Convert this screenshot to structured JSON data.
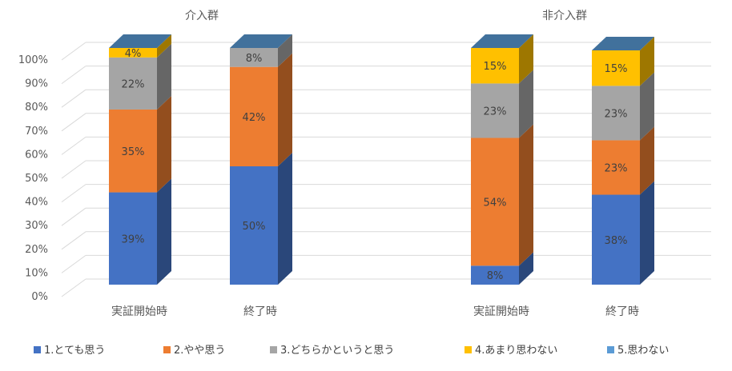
{
  "chart_data": {
    "type": "bar",
    "stacked": true,
    "three_d": true,
    "groups": [
      {
        "name": "介入群",
        "categories": [
          "実証開始時",
          "終了時"
        ]
      },
      {
        "name": "非介入群",
        "categories": [
          "実証開始時",
          "終了時"
        ]
      }
    ],
    "series": [
      {
        "name": "1.とても思う",
        "color": "#4472C4",
        "values": [
          39,
          50,
          8,
          38
        ]
      },
      {
        "name": "2.やや思う",
        "color": "#ED7D31",
        "values": [
          35,
          42,
          54,
          23
        ]
      },
      {
        "name": "3.どちらかというと思う",
        "color": "#A5A5A5",
        "values": [
          22,
          8,
          23,
          23
        ]
      },
      {
        "name": "4.あまり思わない",
        "color": "#FFC000",
        "values": [
          4,
          0,
          15,
          15
        ]
      },
      {
        "name": "5.思わない",
        "color": "#5B9BD5",
        "values": [
          0,
          0,
          0,
          0
        ]
      }
    ],
    "data_labels": [
      [
        "39%",
        "50%",
        "8%",
        "38%"
      ],
      [
        "35%",
        "42%",
        "54%",
        "23%"
      ],
      [
        "22%",
        "8%",
        "23%",
        "23%"
      ],
      [
        "4%",
        "",
        "15%",
        "15%"
      ],
      [
        "",
        "",
        "",
        ""
      ]
    ],
    "yticks": [
      "0%",
      "10%",
      "20%",
      "30%",
      "40%",
      "50%",
      "60%",
      "70%",
      "80%",
      "90%",
      "100%"
    ],
    "ylim": [
      0,
      100
    ],
    "grid": true,
    "legend_position": "bottom"
  }
}
